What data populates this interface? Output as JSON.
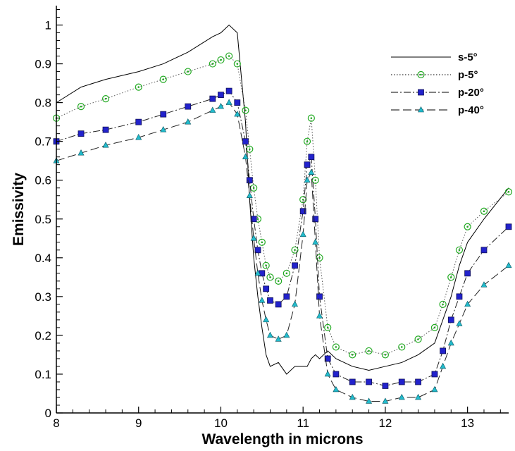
{
  "chart_data": {
    "type": "line",
    "title": "",
    "xlabel": "Wavelength in microns",
    "ylabel": "Emissivity",
    "xlim": [
      8,
      13.5
    ],
    "ylim": [
      0,
      1.05
    ],
    "xticks": [
      8,
      9,
      10,
      11,
      12,
      13
    ],
    "xtick_labels": [
      "8",
      "9",
      "10",
      "11",
      "12",
      "13"
    ],
    "yticks": [
      0,
      0.1,
      0.2,
      0.3,
      0.4,
      0.5,
      0.6,
      0.7,
      0.8,
      0.9,
      1
    ],
    "ytick_labels": [
      "0",
      "0.1",
      "0.2",
      "0.3",
      "0.4",
      "0.5",
      "0.6",
      "0.7",
      "0.8",
      "0.9",
      "1"
    ],
    "grid": false,
    "legend_position": "top-right",
    "series": [
      {
        "name": "s-5°",
        "line": "solid",
        "marker": "none",
        "color": "#000000",
        "x": [
          8.0,
          8.3,
          8.6,
          9.0,
          9.3,
          9.6,
          9.9,
          10.0,
          10.1,
          10.2,
          10.3,
          10.35,
          10.4,
          10.45,
          10.5,
          10.55,
          10.6,
          10.7,
          10.8,
          10.9,
          11.0,
          11.05,
          11.1,
          11.15,
          11.2,
          11.3,
          11.4,
          11.6,
          11.8,
          12.0,
          12.2,
          12.4,
          12.6,
          12.7,
          12.8,
          12.9,
          13.0,
          13.2,
          13.5
        ],
        "y": [
          0.8,
          0.84,
          0.86,
          0.88,
          0.9,
          0.93,
          0.97,
          0.98,
          1.0,
          0.98,
          0.75,
          0.55,
          0.4,
          0.3,
          0.22,
          0.15,
          0.12,
          0.13,
          0.1,
          0.12,
          0.12,
          0.12,
          0.14,
          0.15,
          0.14,
          0.16,
          0.14,
          0.12,
          0.11,
          0.12,
          0.13,
          0.15,
          0.18,
          0.24,
          0.3,
          0.38,
          0.44,
          0.5,
          0.58
        ]
      },
      {
        "name": "p-5°",
        "line": "dotted",
        "marker": "circle-open",
        "color": "#22aa22",
        "x": [
          8.0,
          8.3,
          8.6,
          9.0,
          9.3,
          9.6,
          9.9,
          10.0,
          10.1,
          10.2,
          10.3,
          10.35,
          10.4,
          10.45,
          10.5,
          10.55,
          10.6,
          10.7,
          10.8,
          10.9,
          11.0,
          11.05,
          11.1,
          11.15,
          11.2,
          11.3,
          11.4,
          11.6,
          11.8,
          12.0,
          12.2,
          12.4,
          12.6,
          12.7,
          12.8,
          12.9,
          13.0,
          13.2,
          13.5
        ],
        "y": [
          0.76,
          0.79,
          0.81,
          0.84,
          0.86,
          0.88,
          0.9,
          0.91,
          0.92,
          0.9,
          0.78,
          0.68,
          0.58,
          0.5,
          0.44,
          0.38,
          0.35,
          0.34,
          0.36,
          0.42,
          0.55,
          0.7,
          0.76,
          0.6,
          0.4,
          0.22,
          0.17,
          0.15,
          0.16,
          0.15,
          0.17,
          0.19,
          0.22,
          0.28,
          0.35,
          0.42,
          0.48,
          0.52,
          0.57
        ]
      },
      {
        "name": "p-20°",
        "line": "dash-dot",
        "marker": "square-filled",
        "color": "#2222cc",
        "x": [
          8.0,
          8.3,
          8.6,
          9.0,
          9.3,
          9.6,
          9.9,
          10.0,
          10.1,
          10.2,
          10.3,
          10.35,
          10.4,
          10.45,
          10.5,
          10.55,
          10.6,
          10.7,
          10.8,
          10.9,
          11.0,
          11.05,
          11.1,
          11.15,
          11.2,
          11.3,
          11.4,
          11.6,
          11.8,
          12.0,
          12.2,
          12.4,
          12.6,
          12.7,
          12.8,
          12.9,
          13.0,
          13.2,
          13.5
        ],
        "y": [
          0.7,
          0.72,
          0.73,
          0.75,
          0.77,
          0.79,
          0.81,
          0.82,
          0.83,
          0.8,
          0.7,
          0.6,
          0.5,
          0.42,
          0.36,
          0.32,
          0.29,
          0.28,
          0.3,
          0.38,
          0.52,
          0.64,
          0.66,
          0.5,
          0.3,
          0.14,
          0.1,
          0.08,
          0.08,
          0.07,
          0.08,
          0.08,
          0.1,
          0.16,
          0.24,
          0.3,
          0.36,
          0.42,
          0.48
        ]
      },
      {
        "name": "p-40°",
        "line": "dashed",
        "marker": "triangle-filled",
        "color": "#22bbcc",
        "x": [
          8.0,
          8.3,
          8.6,
          9.0,
          9.3,
          9.6,
          9.9,
          10.0,
          10.1,
          10.2,
          10.3,
          10.35,
          10.4,
          10.45,
          10.5,
          10.55,
          10.6,
          10.7,
          10.8,
          10.9,
          11.0,
          11.05,
          11.1,
          11.15,
          11.2,
          11.3,
          11.4,
          11.6,
          11.8,
          12.0,
          12.2,
          12.4,
          12.6,
          12.7,
          12.8,
          12.9,
          13.0,
          13.2,
          13.5
        ],
        "y": [
          0.65,
          0.67,
          0.69,
          0.71,
          0.73,
          0.75,
          0.78,
          0.79,
          0.8,
          0.77,
          0.66,
          0.56,
          0.45,
          0.36,
          0.29,
          0.24,
          0.2,
          0.19,
          0.2,
          0.28,
          0.46,
          0.6,
          0.62,
          0.44,
          0.25,
          0.1,
          0.06,
          0.04,
          0.03,
          0.03,
          0.04,
          0.04,
          0.06,
          0.12,
          0.18,
          0.23,
          0.28,
          0.33,
          0.38
        ]
      }
    ]
  }
}
